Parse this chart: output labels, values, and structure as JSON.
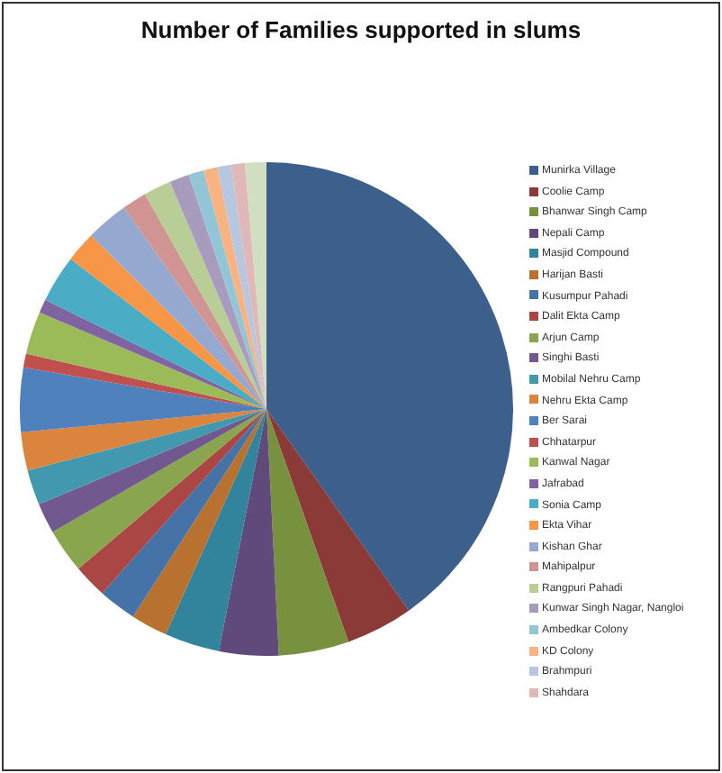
{
  "chart_data": {
    "type": "pie",
    "title": "Number of Families supported in slums",
    "categories": [
      "Munirka Village",
      "Coolie Camp",
      "Bhanwar Singh Camp",
      "Nepali Camp",
      "Masjid Compound",
      "Harijan Basti",
      "Kusumpur Pahadi",
      "Dalit Ekta Camp",
      "Arjun Camp",
      "Singhi Basti",
      "Mobilal Nehru Camp",
      "Nehru Ekta Camp",
      "Ber Sarai",
      "Chhatarpur",
      "Kanwal Nagar",
      "Jafrabad",
      "Sonia Camp",
      "Ekta Vihar",
      "Kishan Ghar",
      "Mahipalpur",
      "Rangpuri Pahadi",
      "Kunwar Singh Nagar,  Nangloi",
      "Ambedkar Colony",
      "KD Colony",
      "Brahmpuri",
      "Shahdara",
      null
    ],
    "values": [
      40.2,
      4.4,
      4.6,
      3.9,
      3.6,
      2.4,
      2.5,
      2.2,
      2.9,
      2.0,
      2.3,
      2.5,
      4.2,
      0.9,
      2.8,
      0.9,
      3.1,
      2.0,
      2.8,
      1.6,
      1.8,
      1.3,
      1.0,
      0.9,
      0.9,
      0.9,
      1.4
    ],
    "colors": [
      "#3c5f8c",
      "#8b3a37",
      "#77913f",
      "#5f4a7b",
      "#31849b",
      "#b9712f",
      "#4573a7",
      "#aa4643",
      "#89a54e",
      "#71588f",
      "#4198af",
      "#db843d",
      "#4f81bd",
      "#c0504d",
      "#9bbb59",
      "#8064a2",
      "#4bacc6",
      "#f79646",
      "#95a9d0",
      "#d09493",
      "#b9cd96",
      "#a99bbd",
      "#92c5d6",
      "#f9b382",
      "#b8c7e0",
      "#e0b8b8",
      "#d2dec0"
    ],
    "legend": "right"
  }
}
